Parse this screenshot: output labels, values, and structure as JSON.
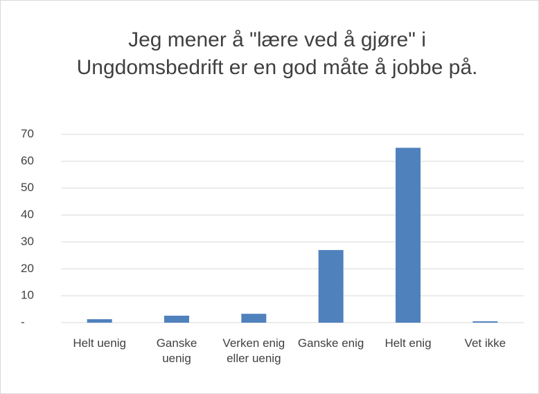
{
  "chart_data": {
    "type": "bar",
    "title": "Jeg mener å \"lære ved å gjøre\" i Ungdomsbedrift er en god måte å jobbe på.",
    "categories": [
      "Helt uenig",
      "Ganske uenig",
      "Verken enig eller uenig",
      "Ganske enig",
      "Helt enig",
      "Vet ikke"
    ],
    "values": [
      1.3,
      2.6,
      3.3,
      27,
      65,
      0.5
    ],
    "color": "#4f81bd",
    "ylim": [
      0,
      70
    ],
    "yticks": [
      {
        "value": 0,
        "label": "-"
      },
      10,
      20,
      30,
      40,
      50,
      60,
      70
    ],
    "grid": true
  }
}
